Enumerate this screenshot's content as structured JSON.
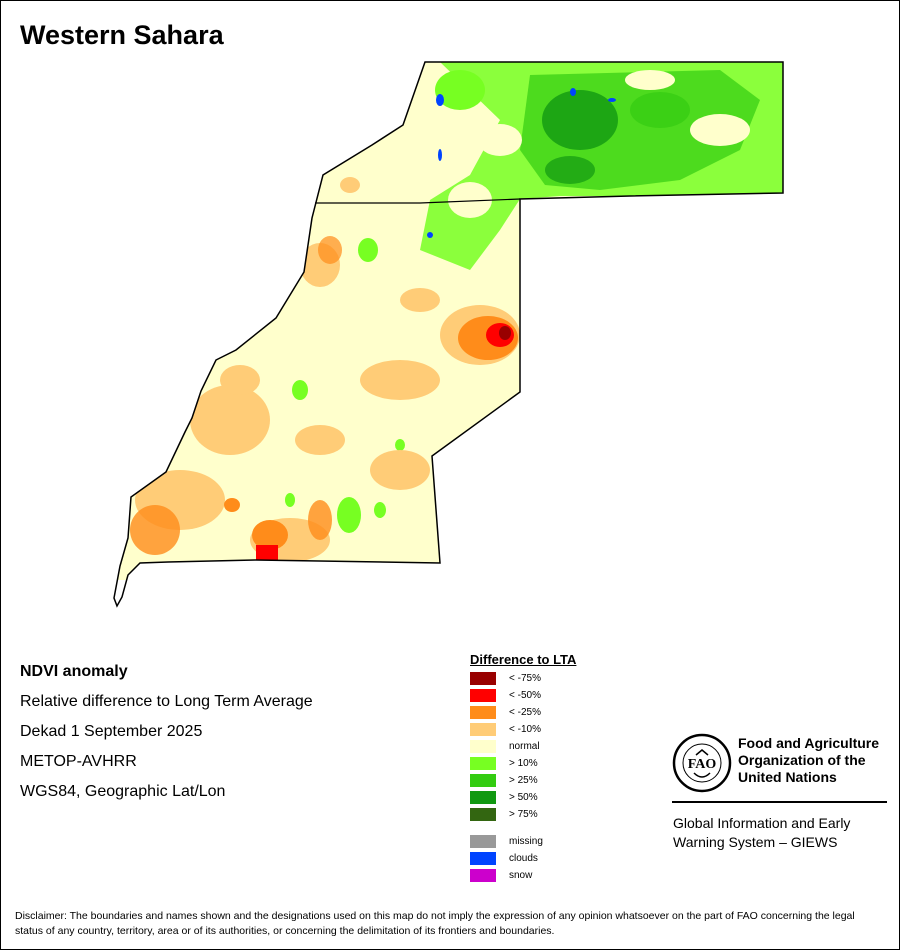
{
  "title": "Western Sahara",
  "info": {
    "line1": "NDVI anomaly",
    "line2": "Relative difference to Long Term Average",
    "line3": "Dekad 1 September 2025",
    "line4": "METOP-AVHRR",
    "line5": "WGS84, Geographic Lat/Lon"
  },
  "legend": {
    "title": "Difference to LTA",
    "items": [
      {
        "label": "< -75%",
        "color": "#990000"
      },
      {
        "label": "< -50%",
        "color": "#ff0000"
      },
      {
        "label": "< -25%",
        "color": "#ff8c1a"
      },
      {
        "label": "< -10%",
        "color": "#ffcc77"
      },
      {
        "label": "normal",
        "color": "#ffffcc"
      },
      {
        "label": "> 10%",
        "color": "#77ff22"
      },
      {
        "label": "> 25%",
        "color": "#33cc11"
      },
      {
        "label": "> 50%",
        "color": "#119911"
      },
      {
        "label": "> 75%",
        "color": "#336611"
      }
    ],
    "extra": [
      {
        "label": "missing",
        "color": "#999999"
      },
      {
        "label": "clouds",
        "color": "#0044ff"
      },
      {
        "label": "snow",
        "color": "#cc00cc"
      }
    ]
  },
  "fao": {
    "logo_letters": "FAO",
    "name_line1": "Food and Agriculture",
    "name_line2": "Organization of the",
    "name_line3": "United Nations",
    "giews_line1": "Global Information and Early",
    "giews_line2": "Warning System – GIEWS"
  },
  "disclaimer": "Disclaimer: The boundaries and names shown and the designations used on this map do not imply the expression of any opinion whatsoever on the part of FAO concerning the legal status of any country, territory, area or of its authorities, or concerning the delimitation of its frontiers and boundaries."
}
